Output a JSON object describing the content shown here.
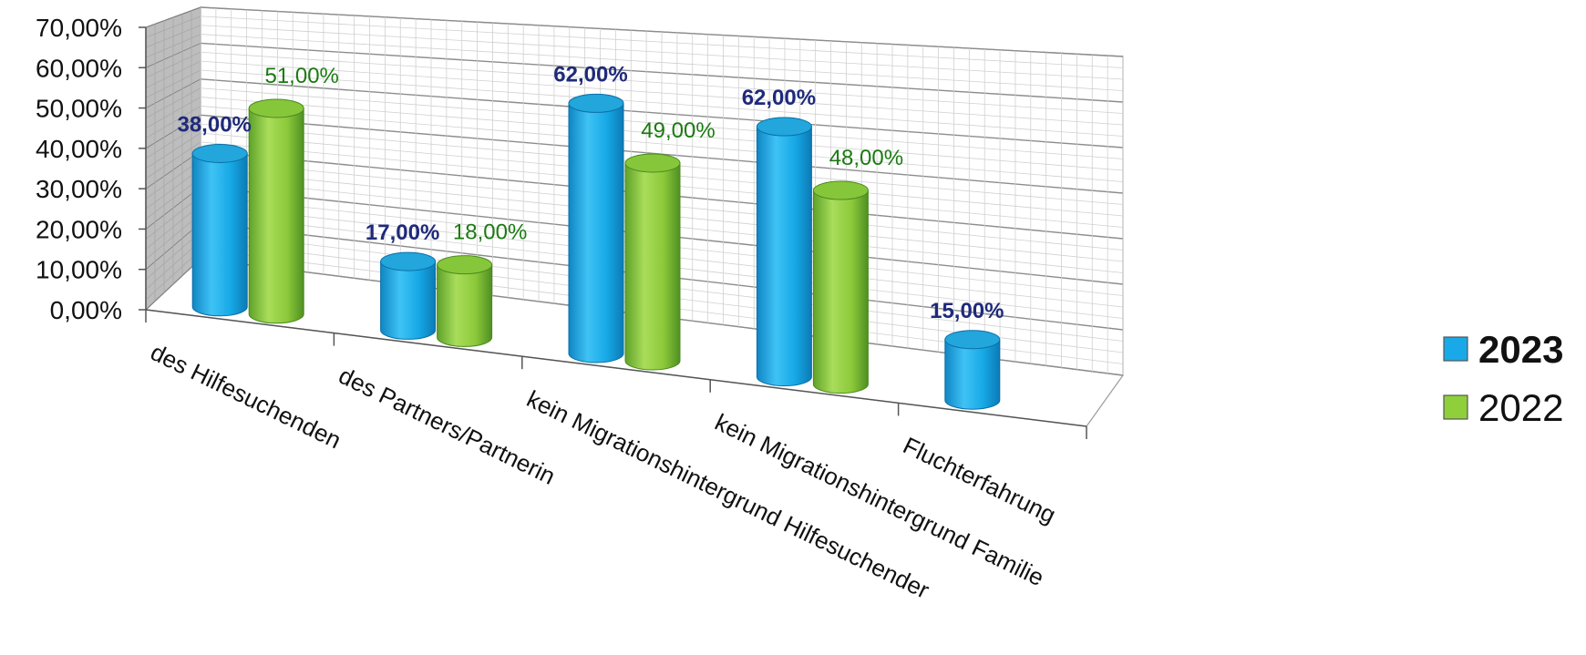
{
  "chart_data": {
    "type": "bar",
    "style": "3d-cylinder",
    "categories": [
      "des Hilfesuchenden",
      "des Partners/Partnerin",
      "kein Migrationshintergrund Hilfesuchender",
      "kein Migrationshintergrund Familie",
      "Fluchterfahrung"
    ],
    "series": [
      {
        "name": "2023",
        "values": [
          38,
          17,
          62,
          62,
          15
        ],
        "labels": [
          "38,00%",
          "17,00%",
          "62,00%",
          "62,00%",
          "15,00%"
        ],
        "color": "#1aa9e8"
      },
      {
        "name": "2022",
        "values": [
          51,
          18,
          49,
          48,
          null
        ],
        "labels": [
          "51,00%",
          "18,00%",
          "49,00%",
          "48,00%",
          ""
        ],
        "color": "#8fcf3c"
      }
    ],
    "yticks": [
      "0,00%",
      "10,00%",
      "20,00%",
      "30,00%",
      "40,00%",
      "50,00%",
      "60,00%",
      "70,00%"
    ],
    "ylim": [
      0,
      70
    ],
    "grid": true,
    "legend_position": "right"
  }
}
